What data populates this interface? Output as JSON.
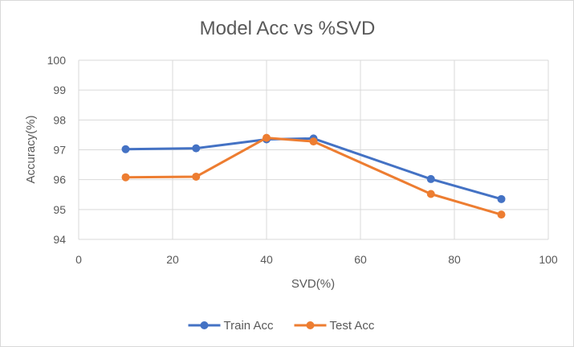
{
  "chart_data": {
    "type": "line",
    "title": "Model Acc vs %SVD",
    "xlabel": "SVD(%)",
    "ylabel": "Accuracy(%)",
    "xlim": [
      0,
      100
    ],
    "ylim": [
      94,
      100
    ],
    "xticks": [
      0,
      20,
      40,
      60,
      80,
      100
    ],
    "yticks": [
      94,
      95,
      96,
      97,
      98,
      99,
      100
    ],
    "grid": true,
    "legend_position": "bottom",
    "series": [
      {
        "name": "Train Acc",
        "color": "#4472c4",
        "x": [
          10,
          25,
          40,
          50,
          75,
          90
        ],
        "y": [
          97.02,
          97.05,
          97.35,
          97.38,
          96.02,
          95.35
        ]
      },
      {
        "name": "Test Acc",
        "color": "#ed7d31",
        "x": [
          10,
          25,
          40,
          50,
          75,
          90
        ],
        "y": [
          96.08,
          96.1,
          97.4,
          97.28,
          95.52,
          94.83
        ]
      }
    ]
  }
}
